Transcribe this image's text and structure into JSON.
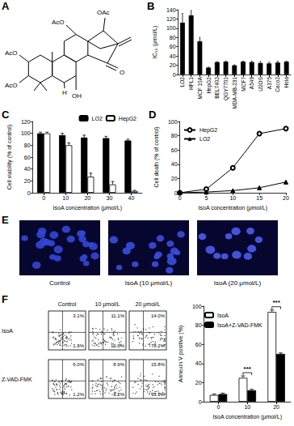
{
  "chart_data": [
    {
      "panel": "B",
      "type": "bar",
      "categories": [
        "LO2",
        "HFL1",
        "MCF 10A",
        "HepG2",
        "BEL7402",
        "QGY7701",
        "MDA-MB-231",
        "MCF7",
        "A549",
        "U2OS",
        "A375",
        "Caco2",
        "Hela"
      ],
      "values": [
        112,
        128,
        72,
        15,
        27,
        28,
        20,
        28,
        27,
        25,
        24,
        26,
        28
      ],
      "errors": [
        20,
        10,
        8,
        1,
        1,
        1,
        1,
        1,
        2,
        3,
        3,
        3,
        1
      ],
      "color": "#000000",
      "ylabel": "IC₅₀ (μmol/L)",
      "ylim": [
        0,
        140
      ],
      "yticks": [
        0,
        20,
        40,
        60,
        80,
        100,
        120,
        140
      ]
    },
    {
      "panel": "C",
      "type": "bar",
      "categories": [
        "0",
        "10",
        "20",
        "30",
        "40"
      ],
      "xlabel": "IsoA concentration (μmol/L)",
      "ylabel": "Cell viability (% of control)",
      "ylim": [
        0,
        120
      ],
      "yticks": [
        0,
        20,
        40,
        60,
        80,
        100,
        120
      ],
      "legend": "upper right",
      "series": [
        {
          "name": "LO2",
          "color": "#000000",
          "values": [
            100,
            97,
            93,
            92,
            88
          ],
          "errors": [
            2,
            3,
            4,
            3,
            2
          ]
        },
        {
          "name": "HepG2",
          "color": "#ffffff",
          "values": [
            100,
            80,
            27,
            14,
            3
          ],
          "errors": [
            2,
            4,
            6,
            5,
            1
          ]
        }
      ]
    },
    {
      "panel": "D",
      "type": "line",
      "x": [
        0,
        5,
        10,
        15,
        20
      ],
      "xlim": [
        0,
        20
      ],
      "xticks": [
        0,
        5,
        10,
        15,
        20
      ],
      "xlabel": "IsoA concentration (μmol/L)",
      "ylabel": "Cell death (% of control)",
      "ylim": [
        0,
        100
      ],
      "yticks": [
        0,
        20,
        40,
        60,
        80,
        100
      ],
      "legend": "upper left",
      "series": [
        {
          "name": "HepG2",
          "color": "#000000",
          "marker": "emptyCircle",
          "values": [
            0,
            5,
            35,
            83,
            90
          ]
        },
        {
          "name": "LO2",
          "color": "#000000",
          "marker": "triangle",
          "values": [
            0,
            1,
            3,
            7,
            15
          ]
        }
      ]
    },
    {
      "panel": "F",
      "type": "bar",
      "categories": [
        "0",
        "10",
        "20"
      ],
      "xlabel": "IsoA concentration (μmol/L)",
      "ylabel": "Annexin V positive (%)",
      "ylim": [
        0,
        100
      ],
      "yticks": [
        0,
        20,
        40,
        60,
        80,
        100
      ],
      "legend": "upper left",
      "series": [
        {
          "name": "IsoA",
          "color": "#ffffff",
          "values": [
            7,
            25,
            94
          ],
          "errors": [
            1,
            2,
            2
          ]
        },
        {
          "name": "IsoA+Z-VAD-FMK",
          "color": "#000000",
          "values": [
            8,
            12,
            50
          ],
          "errors": [
            1,
            1,
            1
          ]
        }
      ],
      "annotations": [
        {
          "category": "10",
          "text": "***"
        },
        {
          "category": "20",
          "text": "***"
        }
      ]
    }
  ],
  "figure": {
    "A": {
      "panel": "A",
      "labels": [
        "OAc",
        "AcO",
        "AcO",
        "AcO",
        "H",
        "OH",
        "O"
      ]
    },
    "E": {
      "panel": "E",
      "images": [
        "Control",
        "IsoA (10 μmol/L)",
        "IsoA (20 μmol/L)"
      ]
    },
    "F_flow": {
      "columns": [
        "Control",
        "10 μmol/L",
        "20 μmol/L"
      ],
      "rows": [
        {
          "label": "IsoA",
          "upper": [
            "3.1%",
            "11.1%",
            "14.0%"
          ],
          "lower": [
            "1.9%",
            "10.6%",
            "78.2%"
          ]
        },
        {
          "label": "Z-VAD-FMK",
          "upper": [
            "6.0%",
            "8.9%",
            "15.8%"
          ],
          "lower": [
            "1.2%",
            "3.2%",
            "35.1%"
          ]
        }
      ]
    }
  }
}
